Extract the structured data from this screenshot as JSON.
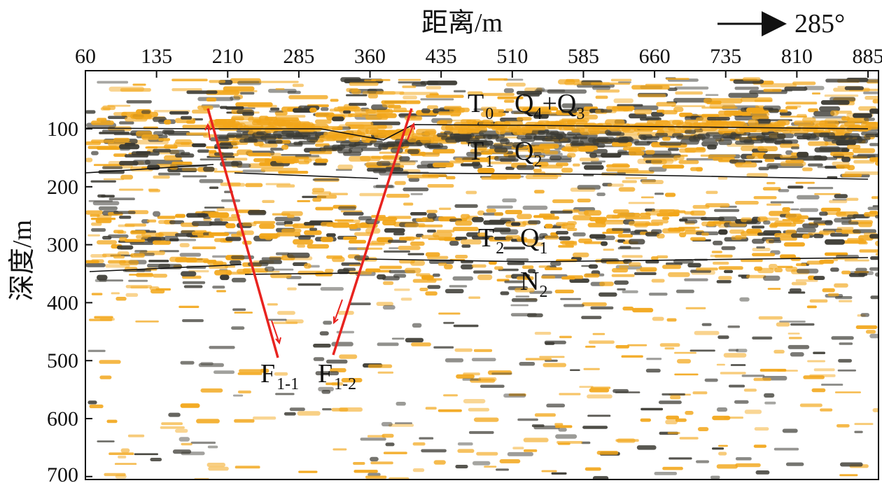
{
  "figure": {
    "x_axis": {
      "title": "距离/m",
      "ticks": [
        "60",
        "135",
        "210",
        "285",
        "360",
        "435",
        "510",
        "585",
        "660",
        "735",
        "810",
        "885"
      ]
    },
    "y_axis": {
      "title": "深度/m",
      "ticks": [
        "100",
        "200",
        "300",
        "400",
        "500",
        "600",
        "700"
      ]
    },
    "direction": {
      "label": "285°"
    },
    "horizons": [
      {
        "id": "T0",
        "main": "T",
        "sub": "0"
      },
      {
        "id": "T1",
        "main": "T",
        "sub": "1"
      },
      {
        "id": "T2",
        "main": "T",
        "sub": "2"
      }
    ],
    "strata": [
      {
        "id": "Q4Q3",
        "parts": [
          "Q",
          "4",
          "+Q",
          "3"
        ]
      },
      {
        "id": "Q2",
        "parts": [
          "Q",
          "2"
        ]
      },
      {
        "id": "Q1",
        "parts": [
          "Q",
          "1"
        ]
      },
      {
        "id": "N2",
        "parts": [
          "N",
          "2"
        ]
      }
    ],
    "faults": [
      {
        "id": "F1-1",
        "main": "F",
        "sub": "1-1"
      },
      {
        "id": "F1-2",
        "main": "F",
        "sub": "1-2"
      }
    ],
    "colors": {
      "amber": "#f2a619",
      "dark": "#3b3a33",
      "fault": "#e8231f",
      "horizon_line": "#111111"
    }
  }
}
